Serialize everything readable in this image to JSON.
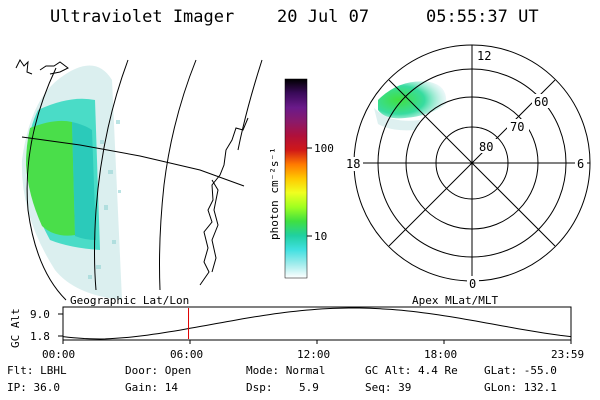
{
  "header": {
    "title": "Ultraviolet Imager",
    "date": "20 Jul 07",
    "time": "05:55:37 UT"
  },
  "geographic_panel": {
    "label": "Geographic Lat/Lon"
  },
  "colorbar": {
    "unit_label": "photon cm⁻²s⁻¹",
    "ticks": [
      "100",
      "10"
    ],
    "stops": [
      "#000000",
      "#3a0a5a",
      "#6a1a8a",
      "#8a1a6a",
      "#b0103a",
      "#d01818",
      "#ff7a00",
      "#ffc800",
      "#f0ff20",
      "#a0ff20",
      "#40e040",
      "#20d0a0",
      "#40e0e0",
      "#a0ecec",
      "#ffffff"
    ]
  },
  "polar_panel": {
    "label": "Apex MLat/MLT",
    "lat_labels": [
      "60",
      "70",
      "80"
    ],
    "mlt_labels": {
      "top": "12",
      "bottom": "0",
      "left": "18",
      "right": "6"
    }
  },
  "altitude_strip": {
    "axis_label": "GC Alt",
    "y_ticks": [
      "9.0",
      "1.8"
    ],
    "time_ticks": [
      "00:00",
      "06:00",
      "12:00",
      "18:00",
      "23:59"
    ],
    "marker_hours": 5.93
  },
  "footer": {
    "row1": [
      "Flt: LBHL",
      "Door: Open",
      "Mode: Normal",
      "GC Alt: 4.4 Re",
      "GLat: -55.0"
    ],
    "row2": [
      "IP: 36.0",
      "Gain: 14",
      "Dsp:    5.9",
      "Seq: 39",
      "GLon: 132.1"
    ]
  },
  "colors": {
    "marker": "#e00000",
    "aurora_green": "#40e040",
    "aurora_teal": "#30d8c0"
  }
}
